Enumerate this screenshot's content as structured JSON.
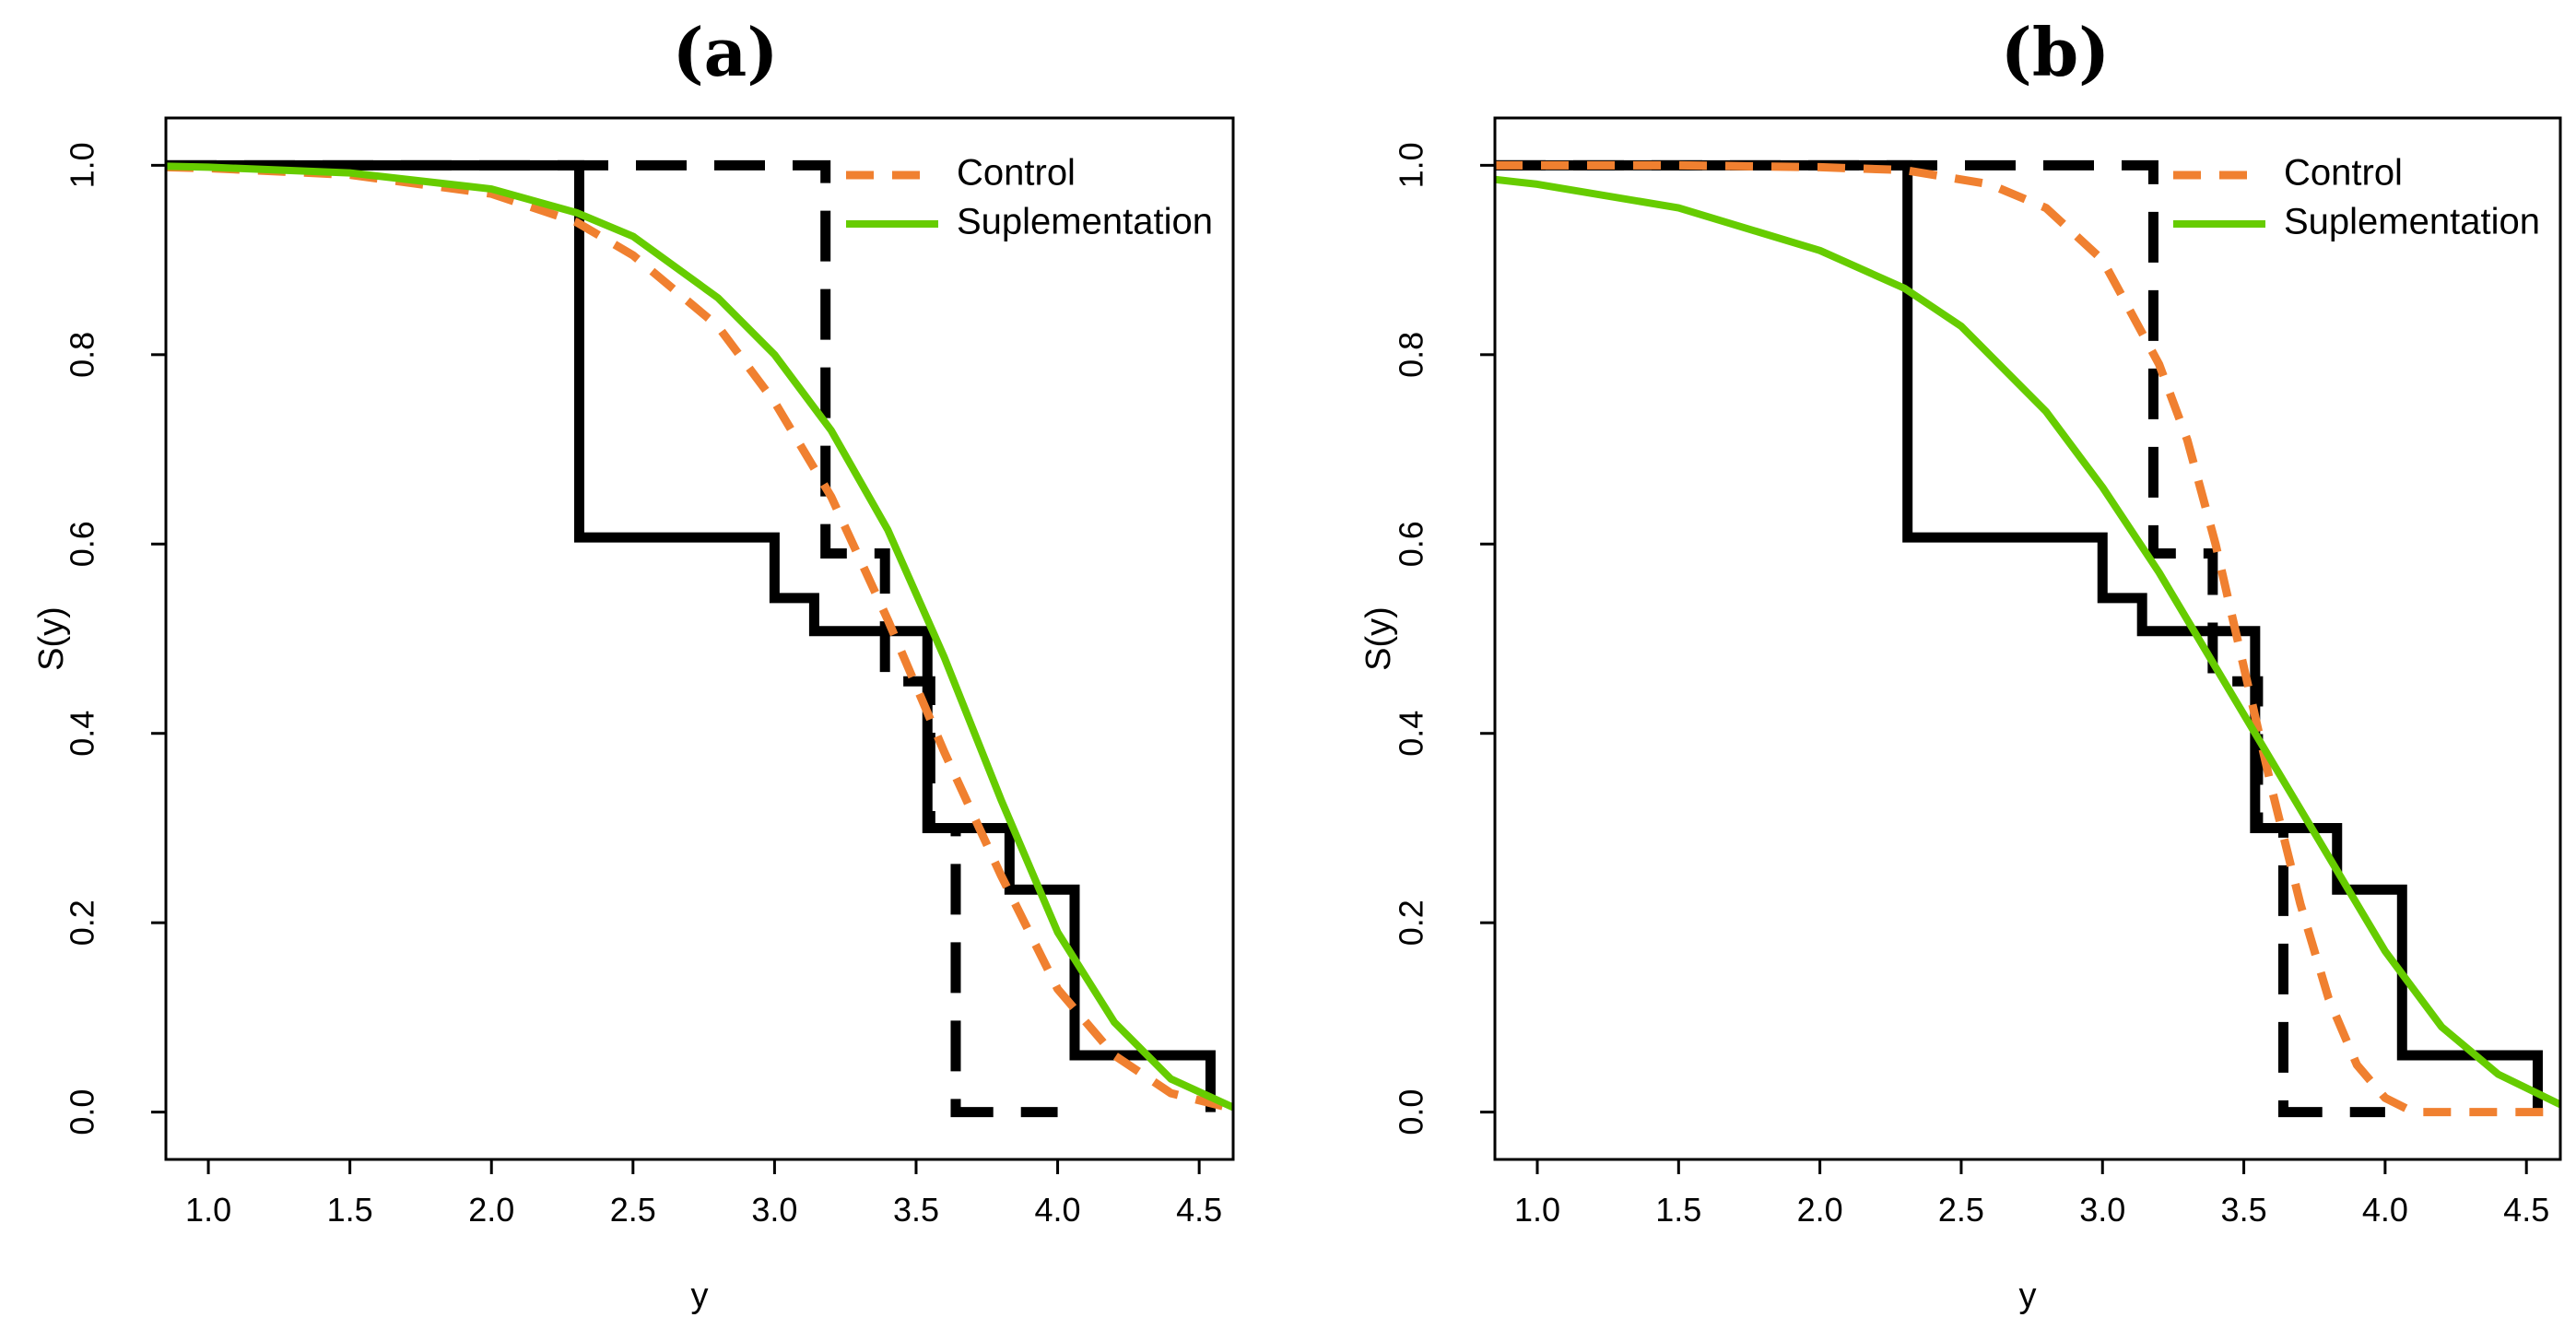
{
  "colors": {
    "control": "#f08030",
    "supplementation": "#66cc00",
    "km": "#000000"
  },
  "chart_data": [
    {
      "type": "line",
      "panel": "(a)",
      "title": "(a)",
      "xlabel": "y",
      "ylabel": "S(y)",
      "xlim": [
        0.85,
        4.62
      ],
      "ylim": [
        -0.05,
        1.05
      ],
      "xticks": [
        1.0,
        1.5,
        2.0,
        2.5,
        3.0,
        3.5,
        4.0,
        4.5
      ],
      "xtick_labels": [
        "1.0",
        "1.5",
        "2.0",
        "2.5",
        "3.0",
        "3.5",
        "4.0",
        "4.5"
      ],
      "yticks": [
        0.0,
        0.2,
        0.4,
        0.6,
        0.8,
        1.0
      ],
      "ytick_labels": [
        "0.0",
        "0.2",
        "0.4",
        "0.6",
        "0.8",
        "1.0"
      ],
      "legend": {
        "position": "top-right",
        "entries": [
          {
            "name": "Control",
            "style": "dashed"
          },
          {
            "name": "Suplementation",
            "style": "solid"
          }
        ]
      },
      "km_curves": [
        {
          "name": "KM Suplementation",
          "style": "solid",
          "steps": {
            "x": [
              0.85,
              2.31,
              3.0,
              3.14,
              3.54,
              3.83,
              4.06,
              4.54
            ],
            "y": [
              1.0,
              0.607,
              0.543,
              0.508,
              0.3,
              0.235,
              0.06,
              0.0
            ]
          }
        },
        {
          "name": "KM Control",
          "style": "dashed",
          "steps": {
            "x": [
              0.85,
              3.18,
              3.39,
              3.55,
              3.64,
              4.0
            ],
            "y": [
              1.0,
              0.59,
              0.455,
              0.3,
              0.0,
              0.0
            ]
          }
        }
      ],
      "series": [
        {
          "name": "Control",
          "style": "dashed",
          "x": [
            0.85,
            1.0,
            1.5,
            2.0,
            2.3,
            2.5,
            2.8,
            3.0,
            3.2,
            3.4,
            3.6,
            3.8,
            4.0,
            4.2,
            4.4,
            4.6
          ],
          "y": [
            0.998,
            0.997,
            0.99,
            0.97,
            0.94,
            0.905,
            0.83,
            0.75,
            0.65,
            0.52,
            0.38,
            0.25,
            0.13,
            0.06,
            0.02,
            0.005
          ]
        },
        {
          "name": "Suplementation",
          "style": "solid",
          "x": [
            0.85,
            1.0,
            1.5,
            2.0,
            2.3,
            2.5,
            2.8,
            3.0,
            3.2,
            3.4,
            3.6,
            3.8,
            4.0,
            4.2,
            4.4,
            4.62
          ],
          "y": [
            0.999,
            0.998,
            0.992,
            0.975,
            0.95,
            0.925,
            0.86,
            0.8,
            0.72,
            0.615,
            0.48,
            0.33,
            0.19,
            0.095,
            0.035,
            0.005
          ]
        }
      ]
    },
    {
      "type": "line",
      "panel": "(b)",
      "title": "(b)",
      "xlabel": "y",
      "ylabel": "S(y)",
      "xlim": [
        0.85,
        4.62
      ],
      "ylim": [
        -0.05,
        1.05
      ],
      "xticks": [
        1.0,
        1.5,
        2.0,
        2.5,
        3.0,
        3.5,
        4.0,
        4.5
      ],
      "xtick_labels": [
        "1.0",
        "1.5",
        "2.0",
        "2.5",
        "3.0",
        "3.5",
        "4.0",
        "4.5"
      ],
      "yticks": [
        0.0,
        0.2,
        0.4,
        0.6,
        0.8,
        1.0
      ],
      "ytick_labels": [
        "0.0",
        "0.2",
        "0.4",
        "0.6",
        "0.8",
        "1.0"
      ],
      "legend": {
        "position": "top-right",
        "entries": [
          {
            "name": "Control",
            "style": "dashed"
          },
          {
            "name": "Suplementation",
            "style": "solid"
          }
        ]
      },
      "km_curves": [
        {
          "name": "KM Suplementation",
          "style": "solid",
          "steps": {
            "x": [
              0.85,
              2.31,
              3.0,
              3.14,
              3.54,
              3.83,
              4.06,
              4.54
            ],
            "y": [
              1.0,
              0.607,
              0.543,
              0.508,
              0.3,
              0.235,
              0.06,
              0.0
            ]
          }
        },
        {
          "name": "KM Control",
          "style": "dashed",
          "steps": {
            "x": [
              0.85,
              3.18,
              3.39,
              3.55,
              3.64,
              4.0
            ],
            "y": [
              1.0,
              0.59,
              0.455,
              0.3,
              0.0,
              0.0
            ]
          }
        }
      ],
      "series": [
        {
          "name": "Control",
          "style": "dashed",
          "x": [
            0.85,
            1.5,
            2.0,
            2.3,
            2.6,
            2.8,
            3.0,
            3.2,
            3.3,
            3.4,
            3.5,
            3.6,
            3.7,
            3.8,
            3.9,
            4.0,
            4.1,
            4.3,
            4.6
          ],
          "y": [
            1.0,
            1.0,
            0.998,
            0.995,
            0.98,
            0.955,
            0.9,
            0.79,
            0.71,
            0.6,
            0.47,
            0.34,
            0.22,
            0.12,
            0.05,
            0.015,
            0.0,
            0.0,
            0.0
          ]
        },
        {
          "name": "Suplementation",
          "style": "solid",
          "x": [
            0.85,
            1.0,
            1.5,
            2.0,
            2.3,
            2.5,
            2.8,
            3.0,
            3.2,
            3.4,
            3.6,
            3.8,
            4.0,
            4.2,
            4.4,
            4.62
          ],
          "y": [
            0.985,
            0.98,
            0.955,
            0.91,
            0.87,
            0.83,
            0.74,
            0.66,
            0.57,
            0.47,
            0.37,
            0.27,
            0.17,
            0.09,
            0.04,
            0.008
          ]
        }
      ]
    }
  ]
}
